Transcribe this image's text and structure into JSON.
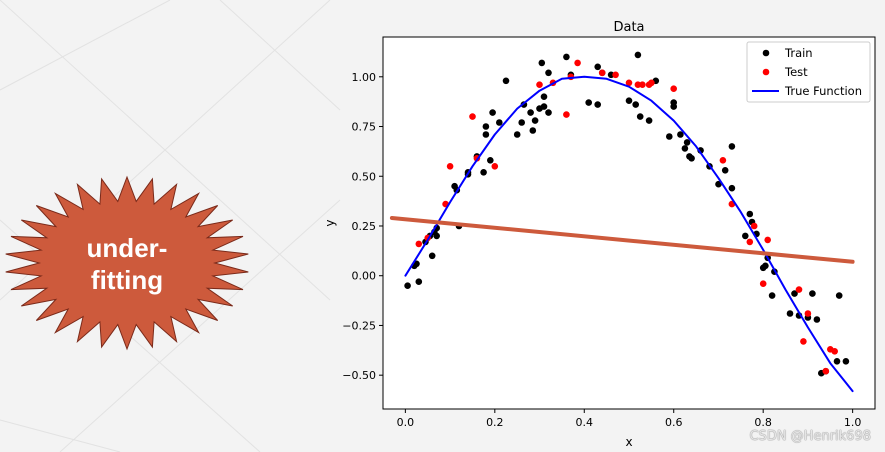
{
  "slide": {
    "callout_line1": "under-",
    "callout_line2": "fitting",
    "callout_color": "#cd5a3c",
    "watermark": "CSDN @Henrik698"
  },
  "chart_data": {
    "type": "scatter",
    "title": "Data",
    "xlabel": "x",
    "ylabel": "y",
    "xlim": [
      -0.05,
      1.05
    ],
    "ylim": [
      -0.67,
      1.2
    ],
    "xticks": [
      0.0,
      0.2,
      0.4,
      0.6,
      0.8,
      1.0
    ],
    "xtick_labels": [
      "0.0",
      "0.2",
      "0.4",
      "0.6",
      "0.8",
      "1.0"
    ],
    "yticks": [
      -0.5,
      -0.25,
      0.0,
      0.25,
      0.5,
      0.75,
      1.0
    ],
    "ytick_labels": [
      "−0.50",
      "−0.25",
      "0.00",
      "0.25",
      "0.50",
      "0.75",
      "1.00"
    ],
    "grid": false,
    "legend_position": "top-right",
    "legend": [
      {
        "label": "Train",
        "kind": "marker",
        "color": "#000000"
      },
      {
        "label": "Test",
        "kind": "marker",
        "color": "#ff0000"
      },
      {
        "label": "True Function",
        "kind": "line",
        "color": "#0000ff"
      }
    ],
    "series": [
      {
        "name": "Train",
        "kind": "points",
        "color": "#000000",
        "points": [
          [
            0.005,
            -0.05
          ],
          [
            0.02,
            0.05
          ],
          [
            0.025,
            0.06
          ],
          [
            0.03,
            -0.03
          ],
          [
            0.045,
            0.17
          ],
          [
            0.055,
            0.2
          ],
          [
            0.06,
            0.1
          ],
          [
            0.065,
            0.22
          ],
          [
            0.07,
            0.2
          ],
          [
            0.07,
            0.24
          ],
          [
            0.11,
            0.45
          ],
          [
            0.115,
            0.43
          ],
          [
            0.12,
            0.25
          ],
          [
            0.14,
            0.51
          ],
          [
            0.14,
            0.52
          ],
          [
            0.16,
            0.6
          ],
          [
            0.175,
            0.52
          ],
          [
            0.18,
            0.75
          ],
          [
            0.18,
            0.71
          ],
          [
            0.19,
            0.58
          ],
          [
            0.195,
            0.82
          ],
          [
            0.21,
            0.77
          ],
          [
            0.225,
            0.98
          ],
          [
            0.25,
            0.71
          ],
          [
            0.26,
            0.77
          ],
          [
            0.265,
            0.86
          ],
          [
            0.28,
            0.82
          ],
          [
            0.285,
            0.73
          ],
          [
            0.29,
            0.78
          ],
          [
            0.3,
            0.84
          ],
          [
            0.305,
            1.07
          ],
          [
            0.31,
            0.85
          ],
          [
            0.31,
            0.9
          ],
          [
            0.32,
            0.82
          ],
          [
            0.32,
            1.02
          ],
          [
            0.36,
            1.1
          ],
          [
            0.37,
            1.01
          ],
          [
            0.41,
            0.87
          ],
          [
            0.43,
            0.86
          ],
          [
            0.43,
            1.05
          ],
          [
            0.44,
            1.02
          ],
          [
            0.46,
            1.01
          ],
          [
            0.5,
            0.88
          ],
          [
            0.515,
            0.86
          ],
          [
            0.52,
            1.11
          ],
          [
            0.525,
            0.8
          ],
          [
            0.545,
            0.78
          ],
          [
            0.56,
            0.98
          ],
          [
            0.59,
            0.7
          ],
          [
            0.6,
            0.87
          ],
          [
            0.6,
            0.85
          ],
          [
            0.615,
            0.71
          ],
          [
            0.625,
            0.64
          ],
          [
            0.63,
            0.67
          ],
          [
            0.635,
            0.6
          ],
          [
            0.64,
            0.59
          ],
          [
            0.66,
            0.63
          ],
          [
            0.68,
            0.55
          ],
          [
            0.7,
            0.46
          ],
          [
            0.715,
            0.53
          ],
          [
            0.73,
            0.65
          ],
          [
            0.73,
            0.44
          ],
          [
            0.76,
            0.2
          ],
          [
            0.77,
            0.31
          ],
          [
            0.775,
            0.27
          ],
          [
            0.785,
            0.21
          ],
          [
            0.8,
            0.04
          ],
          [
            0.805,
            0.05
          ],
          [
            0.81,
            0.09
          ],
          [
            0.82,
            -0.1
          ],
          [
            0.825,
            0.02
          ],
          [
            0.86,
            -0.19
          ],
          [
            0.87,
            -0.09
          ],
          [
            0.88,
            -0.2
          ],
          [
            0.9,
            -0.21
          ],
          [
            0.91,
            -0.09
          ],
          [
            0.92,
            -0.22
          ],
          [
            0.93,
            -0.49
          ],
          [
            0.94,
            -0.48
          ],
          [
            0.965,
            -0.43
          ],
          [
            0.97,
            -0.1
          ],
          [
            0.985,
            -0.43
          ]
        ]
      },
      {
        "name": "Test",
        "kind": "points",
        "color": "#ff0000",
        "points": [
          [
            0.03,
            0.16
          ],
          [
            0.05,
            0.19
          ],
          [
            0.09,
            0.36
          ],
          [
            0.1,
            0.55
          ],
          [
            0.15,
            0.8
          ],
          [
            0.16,
            0.59
          ],
          [
            0.2,
            0.55
          ],
          [
            0.3,
            0.96
          ],
          [
            0.33,
            0.97
          ],
          [
            0.36,
            0.81
          ],
          [
            0.37,
            1.0
          ],
          [
            0.385,
            1.07
          ],
          [
            0.44,
            1.02
          ],
          [
            0.47,
            1.01
          ],
          [
            0.5,
            0.97
          ],
          [
            0.52,
            0.96
          ],
          [
            0.53,
            0.96
          ],
          [
            0.545,
            0.96
          ],
          [
            0.55,
            0.97
          ],
          [
            0.6,
            0.94
          ],
          [
            0.71,
            0.58
          ],
          [
            0.73,
            0.36
          ],
          [
            0.77,
            0.17
          ],
          [
            0.78,
            0.25
          ],
          [
            0.8,
            -0.04
          ],
          [
            0.81,
            0.18
          ],
          [
            0.88,
            -0.07
          ],
          [
            0.89,
            -0.33
          ],
          [
            0.9,
            -0.19
          ],
          [
            0.94,
            -0.48
          ],
          [
            0.95,
            -0.37
          ],
          [
            0.96,
            -0.38
          ]
        ]
      },
      {
        "name": "True Function",
        "kind": "line",
        "color": "#0000ff",
        "points": [
          [
            0.0,
            0.0
          ],
          [
            0.05,
            0.18
          ],
          [
            0.1,
            0.37
          ],
          [
            0.15,
            0.55
          ],
          [
            0.2,
            0.71
          ],
          [
            0.25,
            0.84
          ],
          [
            0.3,
            0.93
          ],
          [
            0.35,
            0.99
          ],
          [
            0.4,
            1.0
          ],
          [
            0.45,
            0.99
          ],
          [
            0.5,
            0.95
          ],
          [
            0.55,
            0.88
          ],
          [
            0.6,
            0.78
          ],
          [
            0.65,
            0.65
          ],
          [
            0.7,
            0.49
          ],
          [
            0.75,
            0.32
          ],
          [
            0.8,
            0.13
          ],
          [
            0.85,
            -0.07
          ],
          [
            0.9,
            -0.26
          ],
          [
            0.95,
            -0.44
          ],
          [
            1.0,
            -0.58
          ]
        ]
      },
      {
        "kind": "line",
        "color": "#cd5a3c",
        "points": [
          [
            -0.03,
            0.29
          ],
          [
            1.0,
            0.07
          ]
        ]
      }
    ]
  }
}
